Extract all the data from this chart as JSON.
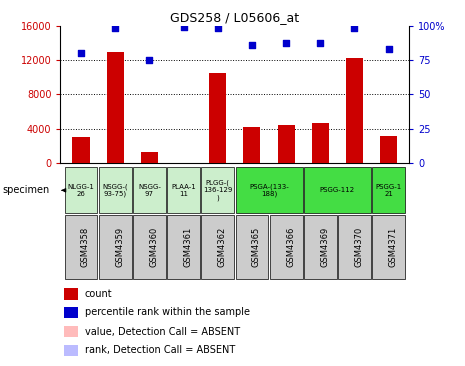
{
  "title": "GDS258 / L05606_at",
  "samples": [
    "GSM4358",
    "GSM4359",
    "GSM4360",
    "GSM4361",
    "GSM4362",
    "GSM4365",
    "GSM4366",
    "GSM4369",
    "GSM4370",
    "GSM4371"
  ],
  "counts": [
    3000,
    12900,
    1300,
    0,
    10500,
    4200,
    4400,
    4600,
    12200,
    3100
  ],
  "percentile_ranks": [
    80,
    98,
    75,
    99,
    98,
    86,
    87,
    87,
    98,
    83
  ],
  "ylim_left": [
    0,
    16000
  ],
  "ylim_right": [
    0,
    100
  ],
  "yticks_left": [
    0,
    4000,
    8000,
    12000,
    16000
  ],
  "yticks_right": [
    0,
    25,
    50,
    75,
    100
  ],
  "bar_color": "#cc0000",
  "dot_color": "#0000cc",
  "bg_color": "#ffffff",
  "gsm_box_color": "#cccccc",
  "group_info": [
    {
      "label": "NLGG-1\n26",
      "color": "#cceecc",
      "indices": [
        0
      ]
    },
    {
      "label": "NSGG-(\n93-75)",
      "color": "#cceecc",
      "indices": [
        1
      ]
    },
    {
      "label": "NSGG-\n97",
      "color": "#cceecc",
      "indices": [
        2
      ]
    },
    {
      "label": "PLAA-1\n11",
      "color": "#cceecc",
      "indices": [
        3
      ]
    },
    {
      "label": "PLGG-(\n136-129\n)",
      "color": "#cceecc",
      "indices": [
        4
      ]
    },
    {
      "label": "PSGA-(133-\n188)",
      "color": "#44dd44",
      "indices": [
        5,
        6
      ]
    },
    {
      "label": "PSGG-112",
      "color": "#44dd44",
      "indices": [
        7,
        8
      ]
    },
    {
      "label": "PSGG-1\n21",
      "color": "#44dd44",
      "indices": [
        9
      ]
    }
  ],
  "legend_items": [
    {
      "color": "#cc0000",
      "label": "count"
    },
    {
      "color": "#0000cc",
      "label": "percentile rank within the sample"
    },
    {
      "color": "#ffbbbb",
      "label": "value, Detection Call = ABSENT"
    },
    {
      "color": "#bbbbff",
      "label": "rank, Detection Call = ABSENT"
    }
  ]
}
